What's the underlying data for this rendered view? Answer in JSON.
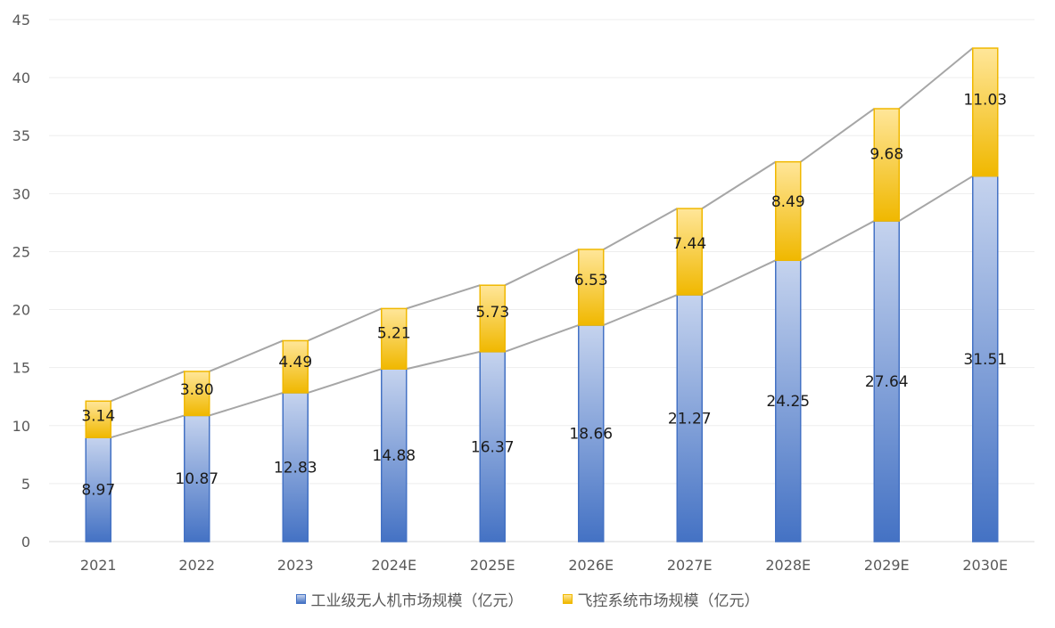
{
  "chart_data": {
    "type": "bar",
    "stacked": true,
    "categories": [
      "2021",
      "2022",
      "2023",
      "2024E",
      "2025E",
      "2026E",
      "2027E",
      "2028E",
      "2029E",
      "2030E"
    ],
    "series": [
      {
        "name": "工业级无人机市场规模（亿元）",
        "values": [
          8.97,
          10.87,
          12.83,
          14.88,
          16.37,
          18.66,
          21.27,
          24.25,
          27.64,
          31.51
        ],
        "labels": [
          "8.97",
          "10.87",
          "12.83",
          "14.88",
          "16.37",
          "18.66",
          "21.27",
          "24.25",
          "27.64",
          "31.51"
        ],
        "color": "#4472C4",
        "color_light": "#C5D3EE"
      },
      {
        "name": "飞控系统市场规模（亿元）",
        "values": [
          3.14,
          3.8,
          4.49,
          5.21,
          5.73,
          6.53,
          7.44,
          8.49,
          9.68,
          11.03
        ],
        "labels": [
          "3.14",
          "3.80",
          "4.49",
          "5.21",
          "5.73",
          "6.53",
          "7.44",
          "8.49",
          "9.68",
          "11.03"
        ],
        "color": "#F0B800",
        "color_light": "#FFE699"
      }
    ],
    "ylim": [
      0,
      45
    ],
    "yticks": [
      "0",
      "5",
      "10",
      "15",
      "20",
      "25",
      "30",
      "35",
      "40",
      "45"
    ],
    "grid": true,
    "series_lines": true,
    "line_color": "#A6A6A6",
    "legend_position": "bottom"
  }
}
